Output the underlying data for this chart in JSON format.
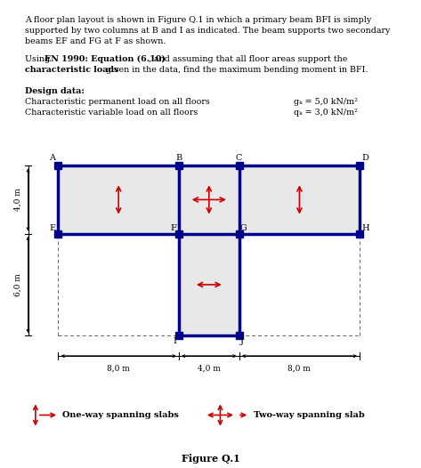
{
  "title_text": "Figure Q.1",
  "p1_lines": [
    "A floor plan layout is shown in Figure Q.1 in which a primary beam BFI is simply",
    "supported by two columns at B and I as indicated. The beam supports two secondary",
    "beams EF and FG at F as shown."
  ],
  "p2_line1_parts": [
    [
      "Using ",
      false
    ],
    [
      "EN 1990: Equation (6.10)",
      true
    ],
    [
      ", and assuming that all floor areas support the",
      false
    ]
  ],
  "p2_line2_parts": [
    [
      "characteristic loads",
      true
    ],
    [
      " given in the data, find the maximum bending moment in BFI.",
      false
    ]
  ],
  "design_label": "Design data:",
  "design_line1": "Characteristic permanent load on all floors",
  "design_line2": "Characteristic variable load on all floors",
  "design_val1": "gₖ = 5,0 kN/m²",
  "design_val2": "qₖ = 3,0 kN/m²",
  "dim_left": "8,0 m",
  "dim_mid": "4,0 m",
  "dim_right": "8,0 m",
  "dim_top": "4,0 m",
  "dim_bot": "6,0 m",
  "legend_oneway": "One-way spanning slabs",
  "legend_twoway": "Two-way spanning slab",
  "blue_color": "#00008B",
  "red_color": "#CC0000",
  "gray_fill": "#E8E8E8",
  "dashed_color": "#666666",
  "background": "#ffffff"
}
